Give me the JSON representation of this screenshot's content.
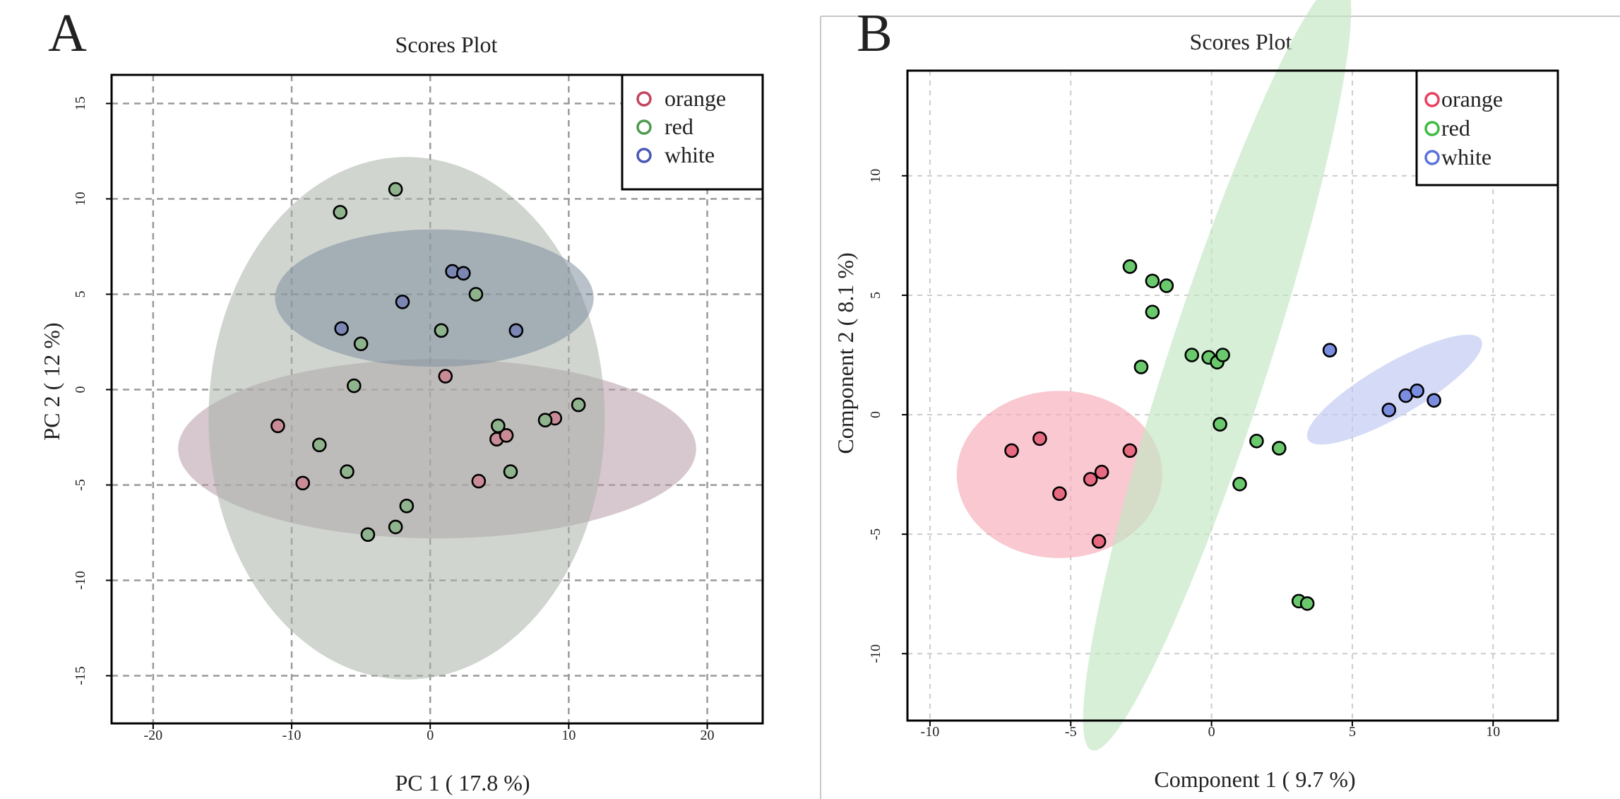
{
  "chart_data": [
    {
      "type": "scatter",
      "panel_label": "A",
      "title": "Scores Plot",
      "xlabel": "PC 1 ( 17.8 %)",
      "ylabel": "PC 2 ( 12 %)",
      "xlim": [
        -23,
        24
      ],
      "ylim": [
        -17.5,
        16.5
      ],
      "xticks": [
        -20,
        -10,
        0,
        10,
        20
      ],
      "yticks": [
        -15,
        -10,
        -5,
        0,
        5,
        10,
        15
      ],
      "tick_labels_x": [
        "-20",
        "-10",
        "0",
        "10",
        "20"
      ],
      "tick_labels_y": [
        "-15",
        "-10",
        "-5",
        "0",
        "5",
        "10",
        "15"
      ],
      "grid": true,
      "legend_position": "top-right",
      "series": [
        {
          "name": "orange",
          "legend_color": "#c0465e",
          "point_fill": "#c98c97",
          "ellipse": {
            "cx": 0.5,
            "cy": -3.1,
            "rx": 18.7,
            "ry": 4.7,
            "color": "#b49aa5"
          },
          "points": [
            [
              -11,
              -1.9
            ],
            [
              -9.2,
              -4.9
            ],
            [
              1.1,
              0.7
            ],
            [
              4.8,
              -2.6
            ],
            [
              5.5,
              -2.4
            ],
            [
              3.5,
              -4.8
            ],
            [
              9,
              -1.5
            ]
          ]
        },
        {
          "name": "red",
          "legend_color": "#4f9a52",
          "point_fill": "#8fb48d",
          "ellipse": {
            "cx": -1.7,
            "cy": -1.5,
            "rx": 14.3,
            "ry": 13.7,
            "color": "#a9b3aa"
          },
          "points": [
            [
              -6.5,
              9.3
            ],
            [
              -2.5,
              10.5
            ],
            [
              -5,
              2.4
            ],
            [
              -5.5,
              0.2
            ],
            [
              -8,
              -2.9
            ],
            [
              -6,
              -4.3
            ],
            [
              -4.5,
              -7.6
            ],
            [
              -2.5,
              -7.2
            ],
            [
              -1.7,
              -6.1
            ],
            [
              0.8,
              3.1
            ],
            [
              3.3,
              5
            ],
            [
              4.9,
              -1.9
            ],
            [
              5.8,
              -4.3
            ],
            [
              8.3,
              -1.6
            ],
            [
              10.7,
              -0.8
            ]
          ]
        },
        {
          "name": "white",
          "legend_color": "#4a57b5",
          "point_fill": "#7c86b5",
          "ellipse": {
            "cx": 0.3,
            "cy": 4.8,
            "rx": 11.5,
            "ry": 3.6,
            "color": "#7f8e9e"
          },
          "points": [
            [
              -6.4,
              3.2
            ],
            [
              -2,
              4.6
            ],
            [
              1.6,
              6.2
            ],
            [
              2.4,
              6.1
            ],
            [
              6.2,
              3.1
            ]
          ]
        }
      ]
    },
    {
      "type": "scatter",
      "panel_label": "B",
      "title": "Scores Plot",
      "xlabel": "Component 1 ( 9.7 %)",
      "ylabel": "Component 2 ( 8.1 %)",
      "xlim": [
        -10.8,
        12.3
      ],
      "ylim": [
        -12.8,
        14.4
      ],
      "xticks": [
        -10,
        -5,
        0,
        5,
        10
      ],
      "yticks": [
        -10,
        -5,
        0,
        5,
        10
      ],
      "tick_labels_x": [
        "-10",
        "-5",
        "0",
        "5",
        "10"
      ],
      "tick_labels_y": [
        "-10",
        "-5",
        "0",
        "5",
        "10"
      ],
      "grid": true,
      "legend_position": "top-right",
      "series": [
        {
          "name": "orange",
          "legend_color": "#e8405e",
          "point_fill": "#e86a80",
          "ellipse": {
            "cx": -5.4,
            "cy": -2.5,
            "rx": 3.65,
            "ry": 3.5,
            "color": "#f6aab9"
          },
          "points": [
            [
              -7.1,
              -1.5
            ],
            [
              -6.1,
              -1
            ],
            [
              -5.4,
              -3.3
            ],
            [
              -4.3,
              -2.7
            ],
            [
              -3.9,
              -2.4
            ],
            [
              -2.9,
              -1.5
            ],
            [
              -4,
              -5.3
            ]
          ]
        },
        {
          "name": "red",
          "legend_color": "#3dbb42",
          "point_fill": "#6ac96d",
          "ellipse": {
            "cx": 0.2,
            "cy": 2.1,
            "rx": 14.4,
            "ry": 2.1,
            "angle": -72,
            "color": "#c2e6c2"
          },
          "points": [
            [
              -2.9,
              6.2
            ],
            [
              -2.1,
              5.6
            ],
            [
              -1.6,
              5.4
            ],
            [
              -2.1,
              4.3
            ],
            [
              -2.5,
              2
            ],
            [
              -0.7,
              2.5
            ],
            [
              -0.1,
              2.4
            ],
            [
              0.2,
              2.2
            ],
            [
              0.4,
              2.5
            ],
            [
              0.3,
              -0.4
            ],
            [
              1.6,
              -1.1
            ],
            [
              2.4,
              -1.4
            ],
            [
              1,
              -2.9
            ],
            [
              3.1,
              -7.8
            ],
            [
              3.4,
              -7.9
            ]
          ]
        },
        {
          "name": "white",
          "legend_color": "#5b72dc",
          "point_fill": "#7b8de0",
          "ellipse": {
            "cx": 6.5,
            "cy": 1.05,
            "rx": 3.55,
            "ry": 1.1,
            "angle": -30,
            "color": "#bfc7f2"
          },
          "points": [
            [
              4.2,
              2.7
            ],
            [
              6.3,
              0.2
            ],
            [
              6.9,
              0.8
            ],
            [
              7.3,
              1
            ],
            [
              7.9,
              0.6
            ]
          ]
        }
      ]
    }
  ]
}
